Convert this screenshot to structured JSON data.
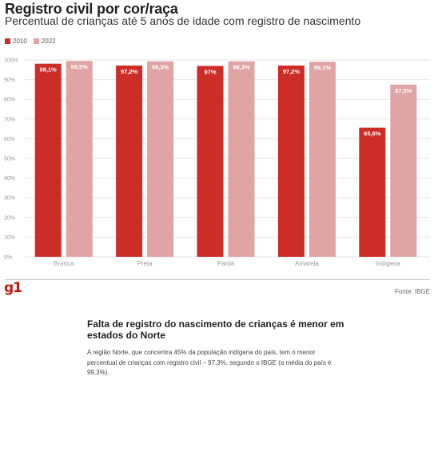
{
  "title": "Registro civil por cor/raça",
  "subtitle": "Percentual de crianças até 5 anos de idade com registro de nascimento",
  "logo": "g1",
  "source": "Fonte: IBGE",
  "colors": {
    "series_2010": "#cc2d26",
    "series_2022": "#e0a4a4",
    "grid": "#e6e6e6",
    "logo": "#c4170c"
  },
  "chart_data": {
    "type": "bar",
    "title": "Registro civil por cor/raça",
    "subtitle": "Percentual de crianças até 5 anos de idade com registro de nascimento",
    "categories": [
      "Branca",
      "Preta",
      "Parda",
      "Amarela",
      "Indígena"
    ],
    "series": [
      {
        "name": "2010",
        "values": [
          98.1,
          97.2,
          97.0,
          97.2,
          65.6
        ],
        "labels": [
          "98,1%",
          "97,2%",
          "97%",
          "97,2%",
          "65,6%"
        ],
        "color": "#cc2d26"
      },
      {
        "name": "2022",
        "values": [
          99.5,
          99.3,
          99.3,
          99.1,
          87.5
        ],
        "labels": [
          "99,5%",
          "99,3%",
          "99,3%",
          "99,1%",
          "87,5%"
        ],
        "color": "#e0a4a4"
      }
    ],
    "ylim": [
      0,
      100
    ],
    "yticks": [
      "0%",
      "10%",
      "20%",
      "30%",
      "40%",
      "50%",
      "60%",
      "70%",
      "80%",
      "90%",
      "100%"
    ],
    "grid": true,
    "legend": "top-left"
  },
  "article": {
    "heading": "Falta de registro do nascimento de crianças é menor em estados do Norte",
    "body": "A região Norte, que concentra 45% da população indígena do país, tem o menor percentual de crianças com registro civil – 97,3%, segundo o IBGE (a média do país é 99,3%)."
  }
}
